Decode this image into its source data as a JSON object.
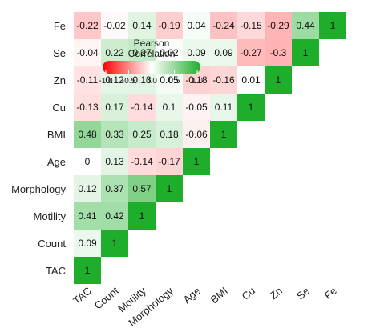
{
  "chart_data": {
    "type": "heatmap",
    "variables": [
      "TAC",
      "Count",
      "Motility",
      "Morphology",
      "Age",
      "BMI",
      "Cu",
      "Zn",
      "Se",
      "Fe"
    ],
    "values": [
      [
        1,
        0.09,
        0.41,
        0.12,
        0,
        0.48,
        -0.13,
        -0.11,
        -0.04,
        -0.22
      ],
      [
        null,
        1,
        0.42,
        0.37,
        0.13,
        0.33,
        0.17,
        0.12,
        0.22,
        -0.02
      ],
      [
        null,
        null,
        1,
        0.57,
        -0.14,
        0.25,
        -0.14,
        0.13,
        0.27,
        0.14
      ],
      [
        null,
        null,
        null,
        1,
        -0.17,
        0.18,
        0.1,
        0.05,
        0.02,
        -0.19
      ],
      [
        null,
        null,
        null,
        null,
        1,
        -0.06,
        -0.05,
        -0.18,
        0.09,
        0.04
      ],
      [
        null,
        null,
        null,
        null,
        null,
        1,
        0.11,
        -0.16,
        0.09,
        -0.24
      ],
      [
        null,
        null,
        null,
        null,
        null,
        null,
        1,
        0.01,
        -0.27,
        -0.15
      ],
      [
        null,
        null,
        null,
        null,
        null,
        null,
        null,
        1,
        -0.3,
        -0.29
      ],
      [
        null,
        null,
        null,
        null,
        null,
        null,
        null,
        null,
        1,
        0.44
      ],
      [
        null,
        null,
        null,
        null,
        null,
        null,
        null,
        null,
        null,
        1
      ]
    ],
    "labels": [
      [
        "1",
        "0.09",
        "0.41",
        "0.12",
        "0",
        "0.48",
        "-0.13",
        "-0.11",
        "-0.04",
        "-0.22"
      ],
      [
        null,
        "1",
        "0.42",
        "0.37",
        "0.13",
        "0.33",
        "0.17",
        "0.12",
        "0.22",
        "-0.02"
      ],
      [
        null,
        null,
        "1",
        "0.57",
        "-0.14",
        "0.25",
        "-0.14",
        "0.13",
        "0.27",
        "0.14"
      ],
      [
        null,
        null,
        null,
        "1",
        "-0.17",
        "0.18",
        "0.1",
        "0.05",
        "0.02",
        "-0.19"
      ],
      [
        null,
        null,
        null,
        null,
        "1",
        "-0.06",
        "-0.05",
        "-0.18",
        "0.09",
        "0.04"
      ],
      [
        null,
        null,
        null,
        null,
        null,
        "1",
        "0.11",
        "-0.16",
        "0.09",
        "-0.24"
      ],
      [
        null,
        null,
        null,
        null,
        null,
        null,
        "1",
        "0.01",
        "-0.27",
        "-0.15"
      ],
      [
        null,
        null,
        null,
        null,
        null,
        null,
        null,
        "1",
        "-0.3",
        "-0.29"
      ],
      [
        null,
        null,
        null,
        null,
        null,
        null,
        null,
        null,
        "1",
        "0.44"
      ],
      [
        null,
        null,
        null,
        null,
        null,
        null,
        null,
        null,
        null,
        "1"
      ]
    ],
    "legend": {
      "title_line1": "Pearson",
      "title_line2": "Correlation",
      "range": [
        -1.0,
        1.0
      ],
      "tick_values": [
        -1.0,
        -0.5,
        0.0,
        0.5,
        1.0
      ],
      "tick_labels": [
        "-1.0",
        "-0.5",
        "0.0",
        "0.5",
        "1.0"
      ],
      "placement": "top-left"
    },
    "colors": {
      "low": "#ff0000",
      "mid": "#ffffff",
      "high": "#1fae2b"
    },
    "grid": false
  }
}
